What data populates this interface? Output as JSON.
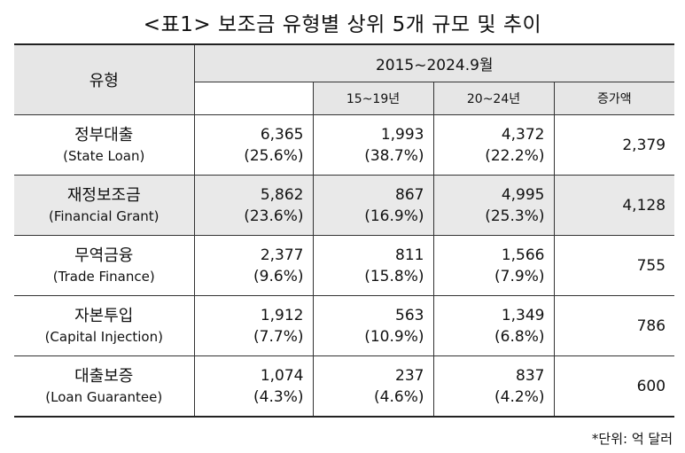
{
  "title": "<표1> 보조금 유형별 상위 5개 규모 및 추이",
  "header": {
    "type_label": "유형",
    "period_label": "2015~2024.9월",
    "sub_headers": [
      "15~19년",
      "20~24년",
      "증가액"
    ]
  },
  "rows": [
    {
      "name_ko": "정부대출",
      "name_en": "(State Loan)",
      "total": "6,365",
      "total_pct": "(25.6%)",
      "p1": "1,993",
      "p1_pct": "(38.7%)",
      "p2": "4,372",
      "p2_pct": "(22.2%)",
      "increase": "2,379"
    },
    {
      "name_ko": "재정보조금",
      "name_en": "(Financial Grant)",
      "total": "5,862",
      "total_pct": "(23.6%)",
      "p1": "867",
      "p1_pct": "(16.9%)",
      "p2": "4,995",
      "p2_pct": "(25.3%)",
      "increase": "4,128"
    },
    {
      "name_ko": "무역금융",
      "name_en": "(Trade Finance)",
      "total": "2,377",
      "total_pct": "(9.6%)",
      "p1": "811",
      "p1_pct": "(15.8%)",
      "p2": "1,566",
      "p2_pct": "(7.9%)",
      "increase": "755"
    },
    {
      "name_ko": "자본투입",
      "name_en": "(Capital Injection)",
      "total": "1,912",
      "total_pct": "(7.7%)",
      "p1": "563",
      "p1_pct": "(10.9%)",
      "p2": "1,349",
      "p2_pct": "(6.8%)",
      "increase": "786"
    },
    {
      "name_ko": "대출보증",
      "name_en": "(Loan Guarantee)",
      "total": "1,074",
      "total_pct": "(4.3%)",
      "p1": "237",
      "p1_pct": "(4.6%)",
      "p2": "837",
      "p2_pct": "(4.2%)",
      "increase": "600"
    }
  ],
  "unit_note": "*단위: 억 달러"
}
